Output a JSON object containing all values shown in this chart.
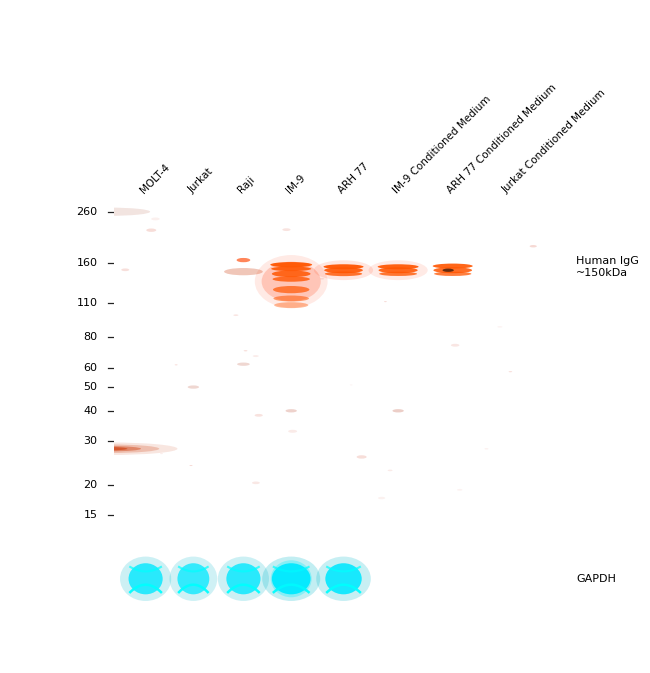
{
  "title": "",
  "bg_color": "#000000",
  "outer_bg": "#ffffff",
  "ladder_labels": [
    "260",
    "160",
    "110",
    "80",
    "60",
    "50",
    "40",
    "30",
    "20",
    "15"
  ],
  "ladder_kda": [
    260,
    160,
    110,
    80,
    60,
    50,
    40,
    30,
    20,
    15
  ],
  "sample_labels": [
    "MOLT-4",
    "Jurkat",
    "Raji",
    "IM-9",
    "ARH 77",
    "IM-9 Conditioned Medium",
    "ARH 77 Conditioned Medium",
    "Jurkat Conditioned Medium"
  ],
  "annotation_text": "Human IgG\n~150kDa",
  "gapdh_label": "GAPDH",
  "figure_width": 6.5,
  "figure_height": 6.73
}
